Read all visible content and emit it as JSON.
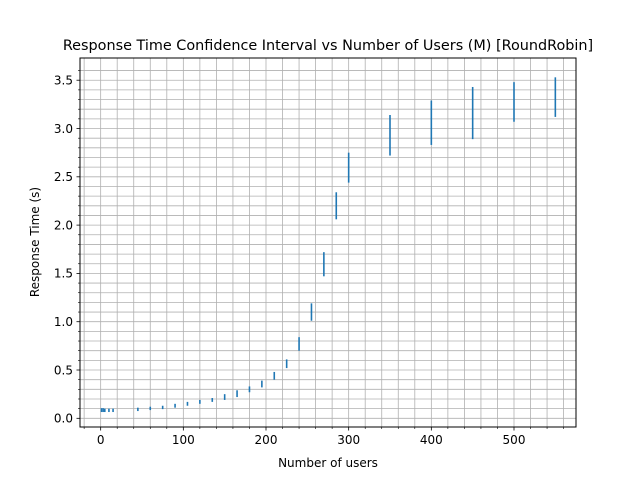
{
  "chart_data": {
    "type": "errorbar",
    "title": "Response Time Confidence Interval vs Number of Users (M) [RoundRobin]",
    "xlabel": "Number of users",
    "ylabel": "Response Time (s)",
    "xlim": [
      -25,
      575
    ],
    "ylim": [
      -0.09,
      3.73
    ],
    "xticks": [
      0,
      100,
      200,
      300,
      400,
      500
    ],
    "xtick_labels": [
      "0",
      "100",
      "200",
      "300",
      "400",
      "500"
    ],
    "yticks": [
      0.0,
      0.5,
      1.0,
      1.5,
      2.0,
      2.5,
      3.0,
      3.5
    ],
    "ytick_labels": [
      "0.0",
      "0.5",
      "1.0",
      "1.5",
      "2.0",
      "2.5",
      "3.0",
      "3.5"
    ],
    "grid": true,
    "minor_grid": true,
    "color": "#1f77b4",
    "series": [
      {
        "x": [
          1,
          3,
          5,
          10,
          15,
          45,
          60,
          75,
          90,
          105,
          120,
          135,
          150,
          165,
          180,
          195,
          210,
          225,
          240,
          255,
          270,
          285,
          300,
          350,
          400,
          450,
          500,
          550
        ],
        "lower": [
          0.065,
          0.065,
          0.065,
          0.065,
          0.065,
          0.075,
          0.085,
          0.095,
          0.11,
          0.13,
          0.15,
          0.17,
          0.19,
          0.22,
          0.27,
          0.32,
          0.4,
          0.52,
          0.7,
          1.01,
          1.47,
          2.06,
          2.44,
          2.72,
          2.83,
          2.89,
          3.07,
          3.12
        ],
        "upper": [
          0.105,
          0.105,
          0.1,
          0.1,
          0.1,
          0.11,
          0.12,
          0.13,
          0.15,
          0.17,
          0.19,
          0.21,
          0.25,
          0.29,
          0.33,
          0.39,
          0.48,
          0.61,
          0.84,
          1.19,
          1.72,
          2.34,
          2.75,
          3.14,
          3.29,
          3.43,
          3.48,
          3.53
        ]
      }
    ]
  }
}
